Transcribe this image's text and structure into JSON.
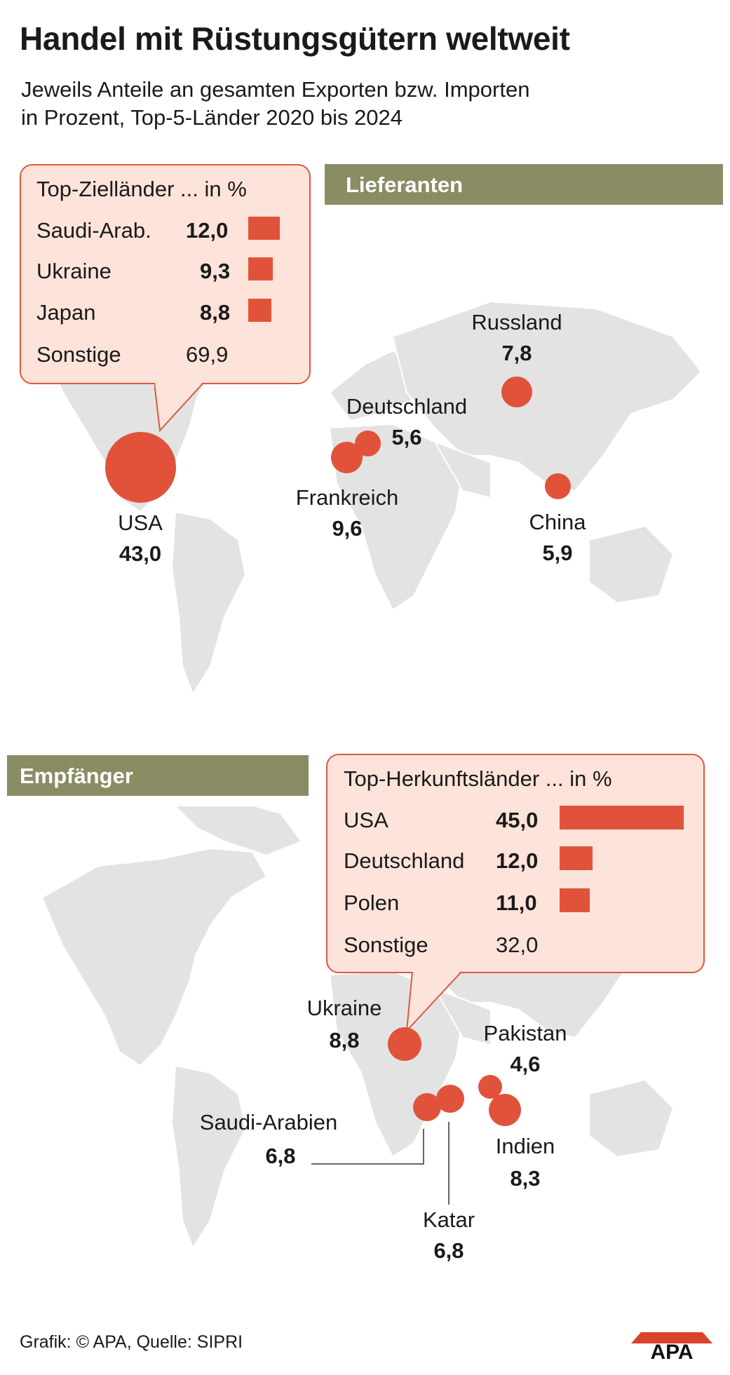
{
  "title": "Handel mit Rüstungsgütern weltweit",
  "subtitle_line1": "Jeweils Anteile an gesamten Exporten bzw. Importen",
  "subtitle_line2": "in Prozent, Top-5-Länder 2020 bis 2024",
  "suppliers": {
    "heading": "Lieferanten",
    "countries": [
      {
        "name": "USA",
        "value": "43,0",
        "share": 43.0
      },
      {
        "name": "Frankreich",
        "value": "9,6",
        "share": 9.6
      },
      {
        "name": "Russland",
        "value": "7,8",
        "share": 7.8
      },
      {
        "name": "China",
        "value": "5,9",
        "share": 5.9
      },
      {
        "name": "Deutschland",
        "value": "5,6",
        "share": 5.6
      }
    ],
    "callout": {
      "title": "Top-Zielländer ... in %",
      "rows": [
        {
          "name": "Saudi-Arab.",
          "value": "12,0",
          "share": 12.0
        },
        {
          "name": "Ukraine",
          "value": "9,3",
          "share": 9.3
        },
        {
          "name": "Japan",
          "value": "8,8",
          "share": 8.8
        },
        {
          "name": "Sonstige",
          "value": "69,9",
          "share": 69.9
        }
      ]
    }
  },
  "recipients": {
    "heading": "Empfänger",
    "countries": [
      {
        "name": "Ukraine",
        "value": "8,8",
        "share": 8.8
      },
      {
        "name": "Indien",
        "value": "8,3",
        "share": 8.3
      },
      {
        "name": "Katar",
        "value": "6,8",
        "share": 6.8
      },
      {
        "name": "Saudi-Arabien",
        "value": "6,8",
        "share": 6.8
      },
      {
        "name": "Pakistan",
        "value": "4,6",
        "share": 4.6
      }
    ],
    "callout": {
      "title": "Top-Herkunftsländer ... in %",
      "rows": [
        {
          "name": "USA",
          "value": "45,0",
          "share": 45.0
        },
        {
          "name": "Deutschland",
          "value": "12,0",
          "share": 12.0
        },
        {
          "name": "Polen",
          "value": "11,0",
          "share": 11.0
        },
        {
          "name": "Sonstige",
          "value": "32,0",
          "share": 32.0
        }
      ]
    }
  },
  "credit": "Grafik: © APA, Quelle: SIPRI",
  "logo_text": "APA",
  "colors": {
    "accent": "#e0533a",
    "callout_bg": "#fde3d9",
    "heading_bar": "#8a8d63",
    "land": "#e3e3e3"
  }
}
